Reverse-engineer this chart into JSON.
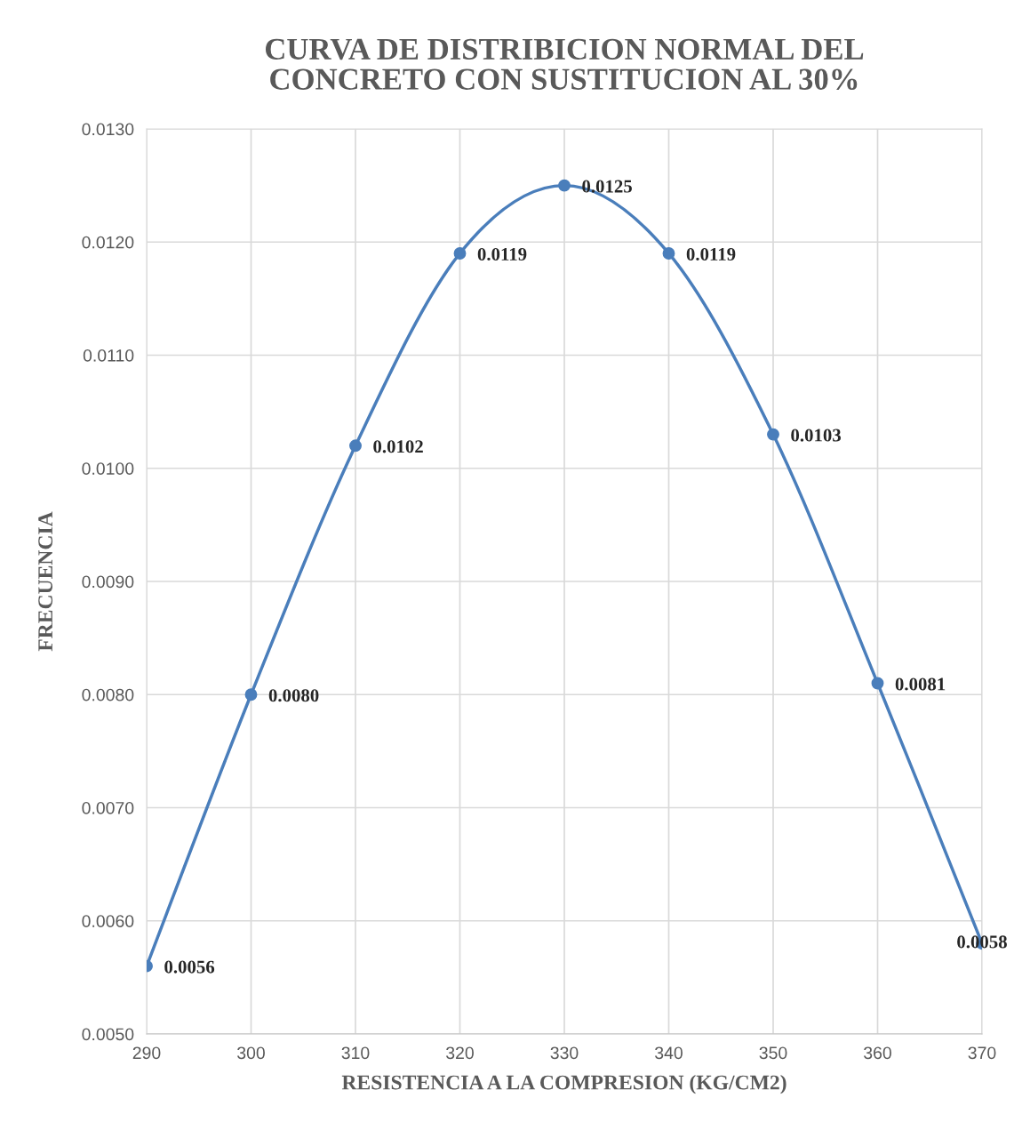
{
  "chart_data": {
    "type": "line",
    "title": "CURVA DE DISTRIBICION NORMAL DEL\nCONCRETO CON SUSTITUCION AL 30%",
    "xlabel": "RESISTENCIA A LA COMPRESION (KG/CM2)",
    "ylabel": "FRECUENCIA",
    "x": [
      290,
      300,
      310,
      320,
      330,
      340,
      350,
      360,
      370
    ],
    "series": [
      {
        "color": "#4a7ebb",
        "values": [
          0.0056,
          0.008,
          0.0102,
          0.0119,
          0.0125,
          0.0119,
          0.0103,
          0.0081,
          0.0058
        ],
        "value_labels": [
          "0.0056",
          "0.0080",
          "0.0102",
          "0.0119",
          "0.0125",
          "0.0119",
          "0.0103",
          "0.0081",
          "0.0058"
        ]
      }
    ],
    "xlim": [
      290,
      370
    ],
    "xticks": [
      290,
      300,
      310,
      320,
      330,
      340,
      350,
      360,
      370
    ],
    "ylim": [
      0.005,
      0.013
    ],
    "yticks": [
      {
        "value": 0.005,
        "label": "0.0050"
      },
      {
        "value": 0.006,
        "label": "0.0060"
      },
      {
        "value": 0.007,
        "label": "0.0070"
      },
      {
        "value": 0.008,
        "label": "0.0080"
      },
      {
        "value": 0.009,
        "label": "0.0090"
      },
      {
        "value": 0.01,
        "label": "0.0100"
      },
      {
        "value": 0.011,
        "label": "0.0110"
      },
      {
        "value": 0.012,
        "label": "0.0120"
      },
      {
        "value": 0.013,
        "label": "0.0130"
      }
    ],
    "grid": true,
    "marker": "circle",
    "line_style": "solid",
    "legend": false
  }
}
